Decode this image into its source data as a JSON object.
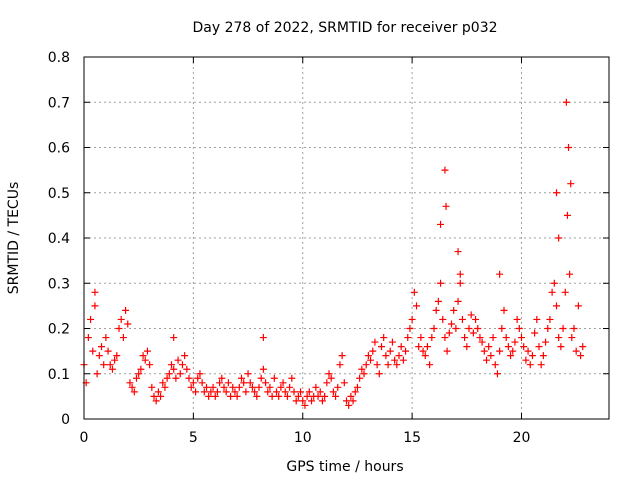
{
  "chart_data": {
    "type": "scatter",
    "title": "Day 278 of 2022, SRMTID for receiver p032",
    "xlabel": "GPS time / hours",
    "ylabel": "SRMTID / TECUs",
    "xlim": [
      0,
      24
    ],
    "ylim": [
      0,
      0.8
    ],
    "xticks": [
      0,
      5,
      10,
      15,
      20
    ],
    "yticks": [
      0,
      0.1,
      0.2,
      0.3,
      0.4,
      0.5,
      0.6,
      0.7,
      0.8
    ],
    "xtick_labels": [
      "0",
      "5",
      "10",
      "15",
      "20"
    ],
    "ytick_labels": [
      "0",
      "0.1",
      "0.2",
      "0.3",
      "0.4",
      "0.5",
      "0.6",
      "0.7",
      "0.8"
    ],
    "grid": true,
    "marker": "+",
    "series": [
      {
        "name": "SRMTID",
        "color": "#ff0000",
        "x": [
          0.0,
          0.1,
          0.2,
          0.3,
          0.4,
          0.5,
          0.6,
          0.7,
          0.8,
          0.9,
          1.0,
          1.1,
          1.2,
          1.3,
          1.4,
          1.5,
          1.6,
          1.7,
          1.8,
          1.9,
          2.0,
          2.1,
          2.2,
          2.3,
          2.4,
          2.5,
          2.6,
          2.7,
          2.8,
          2.9,
          3.0,
          3.1,
          3.2,
          3.3,
          3.4,
          3.5,
          3.6,
          3.7,
          3.8,
          3.9,
          4.0,
          4.1,
          4.2,
          4.3,
          4.4,
          4.5,
          4.6,
          4.7,
          4.8,
          4.9,
          5.0,
          5.1,
          5.2,
          5.3,
          5.4,
          5.5,
          5.6,
          5.7,
          5.8,
          5.9,
          6.0,
          6.1,
          6.2,
          6.3,
          6.4,
          6.5,
          6.6,
          6.7,
          6.8,
          6.9,
          7.0,
          7.1,
          7.2,
          7.3,
          7.4,
          7.5,
          7.6,
          7.7,
          7.8,
          7.9,
          8.0,
          8.1,
          8.2,
          8.3,
          8.4,
          8.5,
          8.6,
          8.7,
          8.8,
          8.9,
          9.0,
          9.1,
          9.2,
          9.3,
          9.4,
          9.5,
          9.6,
          9.7,
          9.8,
          9.9,
          10.0,
          10.1,
          10.2,
          10.3,
          10.4,
          10.5,
          10.6,
          10.7,
          10.8,
          10.9,
          11.0,
          11.1,
          11.2,
          11.3,
          11.4,
          11.5,
          11.6,
          11.7,
          11.8,
          11.9,
          12.0,
          12.1,
          12.2,
          12.3,
          12.4,
          12.5,
          12.6,
          12.7,
          12.8,
          12.9,
          13.0,
          13.1,
          13.2,
          13.3,
          13.4,
          13.5,
          13.6,
          13.7,
          13.8,
          13.9,
          14.0,
          14.1,
          14.2,
          14.3,
          14.4,
          14.5,
          14.6,
          14.7,
          14.8,
          14.9,
          15.0,
          15.1,
          15.2,
          15.3,
          15.4,
          15.5,
          15.6,
          15.7,
          15.8,
          15.9,
          16.0,
          16.1,
          16.2,
          16.3,
          16.4,
          16.5,
          16.6,
          16.7,
          16.8,
          16.9,
          17.0,
          17.1,
          17.2,
          17.3,
          17.4,
          17.5,
          17.6,
          17.7,
          17.8,
          17.9,
          18.0,
          18.1,
          18.2,
          18.3,
          18.4,
          18.5,
          18.6,
          18.7,
          18.8,
          18.9,
          19.0,
          19.1,
          19.2,
          19.3,
          19.4,
          19.5,
          19.6,
          19.7,
          19.8,
          19.9,
          20.0,
          20.1,
          20.2,
          20.3,
          20.4,
          20.5,
          20.6,
          20.7,
          20.8,
          20.9,
          21.0,
          21.1,
          21.2,
          21.3,
          21.4,
          21.5,
          21.6,
          21.7,
          21.8,
          21.9,
          22.0,
          22.1,
          22.2,
          22.3,
          22.4,
          22.5,
          22.6,
          22.7,
          22.8,
          16.5,
          16.55,
          17.1,
          22.05,
          22.15,
          22.25,
          21.6,
          21.7,
          0.5,
          8.2,
          4.1,
          19.0,
          16.3,
          17.2
        ],
        "y": [
          0.12,
          0.08,
          0.18,
          0.22,
          0.15,
          0.25,
          0.1,
          0.14,
          0.16,
          0.12,
          0.18,
          0.15,
          0.12,
          0.11,
          0.13,
          0.14,
          0.2,
          0.22,
          0.18,
          0.24,
          0.21,
          0.08,
          0.07,
          0.06,
          0.09,
          0.1,
          0.11,
          0.14,
          0.13,
          0.15,
          0.12,
          0.07,
          0.05,
          0.04,
          0.06,
          0.05,
          0.08,
          0.07,
          0.09,
          0.1,
          0.12,
          0.11,
          0.09,
          0.13,
          0.1,
          0.12,
          0.14,
          0.11,
          0.09,
          0.07,
          0.08,
          0.06,
          0.09,
          0.1,
          0.08,
          0.06,
          0.07,
          0.05,
          0.06,
          0.07,
          0.05,
          0.06,
          0.08,
          0.09,
          0.07,
          0.06,
          0.08,
          0.05,
          0.07,
          0.06,
          0.05,
          0.07,
          0.09,
          0.08,
          0.06,
          0.1,
          0.08,
          0.07,
          0.06,
          0.05,
          0.07,
          0.09,
          0.11,
          0.08,
          0.06,
          0.07,
          0.05,
          0.09,
          0.06,
          0.05,
          0.07,
          0.08,
          0.06,
          0.05,
          0.07,
          0.09,
          0.06,
          0.04,
          0.05,
          0.06,
          0.04,
          0.03,
          0.05,
          0.06,
          0.04,
          0.05,
          0.07,
          0.05,
          0.06,
          0.04,
          0.05,
          0.08,
          0.1,
          0.09,
          0.06,
          0.05,
          0.07,
          0.12,
          0.14,
          0.08,
          0.04,
          0.03,
          0.05,
          0.04,
          0.06,
          0.07,
          0.09,
          0.11,
          0.1,
          0.12,
          0.14,
          0.13,
          0.15,
          0.17,
          0.12,
          0.1,
          0.16,
          0.18,
          0.14,
          0.12,
          0.15,
          0.17,
          0.13,
          0.12,
          0.14,
          0.16,
          0.13,
          0.15,
          0.18,
          0.2,
          0.22,
          0.28,
          0.25,
          0.16,
          0.18,
          0.15,
          0.14,
          0.16,
          0.12,
          0.18,
          0.2,
          0.24,
          0.26,
          0.3,
          0.22,
          0.18,
          0.15,
          0.19,
          0.21,
          0.24,
          0.2,
          0.26,
          0.3,
          0.22,
          0.18,
          0.16,
          0.2,
          0.23,
          0.19,
          0.22,
          0.2,
          0.18,
          0.17,
          0.15,
          0.13,
          0.16,
          0.14,
          0.18,
          0.12,
          0.1,
          0.15,
          0.2,
          0.24,
          0.18,
          0.16,
          0.14,
          0.15,
          0.17,
          0.22,
          0.2,
          0.18,
          0.16,
          0.13,
          0.15,
          0.12,
          0.14,
          0.19,
          0.22,
          0.16,
          0.12,
          0.14,
          0.17,
          0.2,
          0.22,
          0.28,
          0.3,
          0.25,
          0.18,
          0.16,
          0.2,
          0.28,
          0.45,
          0.32,
          0.18,
          0.2,
          0.15,
          0.25,
          0.14,
          0.16,
          0.55,
          0.47,
          0.37,
          0.7,
          0.6,
          0.52,
          0.5,
          0.4,
          0.28,
          0.18,
          0.18,
          0.32,
          0.43,
          0.32
        ]
      }
    ]
  }
}
